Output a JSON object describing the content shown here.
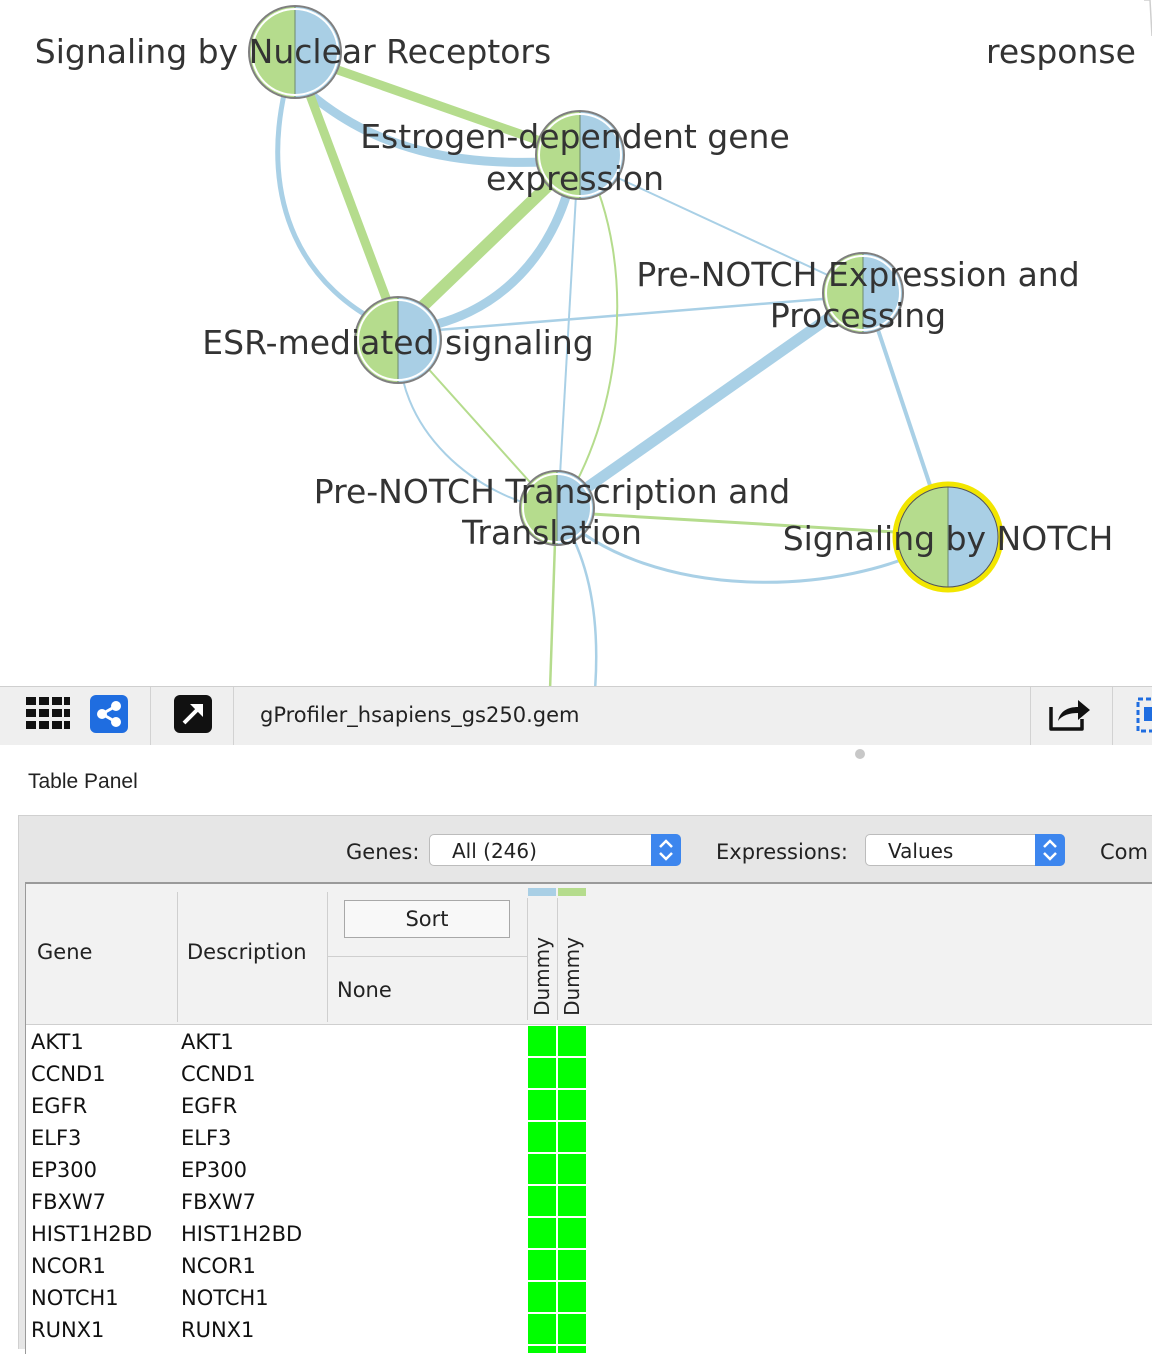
{
  "network": {
    "nodes": [
      {
        "id": "signaling-nuclear-receptors",
        "label_lines": [
          "Signaling by Nuclear Receptors"
        ]
      },
      {
        "id": "estrogen-dependent",
        "label_lines": [
          "Estrogen-dependent gene",
          "expression"
        ]
      },
      {
        "id": "pre-notch-expression",
        "label_lines": [
          "Pre-NOTCH Expression and",
          "Processing"
        ]
      },
      {
        "id": "esr-mediated",
        "label_lines": [
          "ESR-mediated signaling"
        ]
      },
      {
        "id": "pre-notch-transcription",
        "label_lines": [
          "Pre-NOTCH Transcription and",
          "Translation"
        ]
      },
      {
        "id": "signaling-notch",
        "label_lines": [
          "Signaling by NOTCH"
        ]
      },
      {
        "id": "response-cut",
        "label_lines": [
          "response"
        ]
      }
    ],
    "colors": {
      "green": "#b5dc8d",
      "blue": "#a9cfe5",
      "edge_blue": "#a9d0e6",
      "edge_green": "#b5dc8d",
      "selected": "#f2e600",
      "node_border": "#7f7f7f"
    }
  },
  "toolbar": {
    "network_title": "gProfiler_hsapiens_gs250.gem",
    "icons": [
      "grid-icon",
      "share-network-icon",
      "open-external-icon",
      "export-icon",
      "selection-icon"
    ]
  },
  "panel": {
    "title": "Table Panel",
    "genes_label": "Genes:",
    "genes_value": "All (246)",
    "expressions_label": "Expressions:",
    "expressions_value": "Values",
    "com_label": "Com"
  },
  "table": {
    "headers": {
      "gene": "Gene",
      "description": "Description",
      "sort": "Sort",
      "none": "None"
    },
    "expression_columns": [
      {
        "name": "Dummy",
        "class_color": "#a9cfe5"
      },
      {
        "name": "Dummy",
        "class_color": "#b5dc8d"
      }
    ],
    "heat_color": "#00ff00",
    "rows": [
      {
        "gene": "AKT1",
        "description": "AKT1"
      },
      {
        "gene": "CCND1",
        "description": "CCND1"
      },
      {
        "gene": "EGFR",
        "description": "EGFR"
      },
      {
        "gene": "ELF3",
        "description": "ELF3"
      },
      {
        "gene": "EP300",
        "description": "EP300"
      },
      {
        "gene": "FBXW7",
        "description": "FBXW7"
      },
      {
        "gene": "HIST1H2BD",
        "description": "HIST1H2BD"
      },
      {
        "gene": "NCOR1",
        "description": "NCOR1"
      },
      {
        "gene": "NOTCH1",
        "description": "NOTCH1"
      },
      {
        "gene": "RUNX1",
        "description": "RUNX1"
      }
    ]
  }
}
